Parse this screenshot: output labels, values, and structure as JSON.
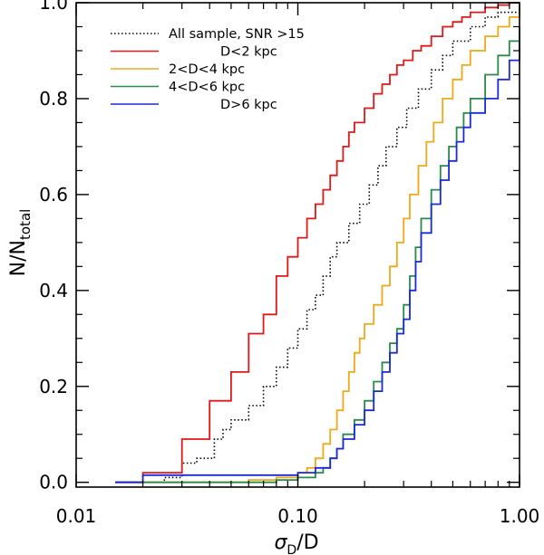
{
  "chart_data": {
    "type": "line",
    "step": true,
    "xlabel": "σD/D",
    "xlabel_main": "σ",
    "xlabel_sub": "D",
    "xlabel_tail": "/D",
    "ylabel": "N/Ntotal",
    "ylabel_main": "N/N",
    "ylabel_sub": "total",
    "xscale": "log",
    "xlim": [
      0.01,
      1.0
    ],
    "ylim": [
      -0.01,
      1.0
    ],
    "xticks": [
      {
        "value": 0.01,
        "label": "0.01"
      },
      {
        "value": 0.1,
        "label": "0.10"
      },
      {
        "value": 1.0,
        "label": "1.00"
      }
    ],
    "yticks": [
      {
        "value": 0.0,
        "label": "0.0"
      },
      {
        "value": 0.2,
        "label": "0.2"
      },
      {
        "value": 0.4,
        "label": "0.4"
      },
      {
        "value": 0.6,
        "label": "0.6"
      },
      {
        "value": 0.8,
        "label": "0.8"
      },
      {
        "value": 1.0,
        "label": "1.0"
      }
    ],
    "grid": false,
    "legend_position": "top-left",
    "series": [
      {
        "name": "All sample, SNR >15",
        "color": "#000000",
        "dash": "dotted",
        "x": [
          0.015,
          0.025,
          0.03,
          0.035,
          0.042,
          0.046,
          0.05,
          0.06,
          0.07,
          0.08,
          0.09,
          0.1,
          0.11,
          0.12,
          0.13,
          0.14,
          0.15,
          0.17,
          0.19,
          0.21,
          0.23,
          0.25,
          0.28,
          0.31,
          0.35,
          0.4,
          0.45,
          0.5,
          0.6,
          0.7,
          0.8,
          0.9,
          1.0
        ],
        "y": [
          0.0,
          0.01,
          0.04,
          0.05,
          0.09,
          0.11,
          0.13,
          0.16,
          0.2,
          0.24,
          0.28,
          0.32,
          0.36,
          0.39,
          0.43,
          0.47,
          0.5,
          0.54,
          0.58,
          0.62,
          0.66,
          0.7,
          0.74,
          0.78,
          0.82,
          0.86,
          0.89,
          0.92,
          0.95,
          0.97,
          0.98,
          0.98,
          0.99
        ]
      },
      {
        "name": "D<2 kpc",
        "color": "#e01818",
        "dash": "solid",
        "x": [
          0.015,
          0.02,
          0.03,
          0.04,
          0.05,
          0.06,
          0.07,
          0.08,
          0.09,
          0.1,
          0.11,
          0.12,
          0.13,
          0.14,
          0.15,
          0.16,
          0.17,
          0.18,
          0.2,
          0.22,
          0.24,
          0.26,
          0.28,
          0.3,
          0.33,
          0.36,
          0.4,
          0.45,
          0.5,
          0.55,
          0.6,
          0.7,
          0.8,
          0.9,
          1.0
        ],
        "y": [
          0.0,
          0.02,
          0.09,
          0.17,
          0.23,
          0.31,
          0.35,
          0.43,
          0.47,
          0.51,
          0.55,
          0.58,
          0.61,
          0.64,
          0.67,
          0.7,
          0.73,
          0.75,
          0.78,
          0.81,
          0.83,
          0.85,
          0.87,
          0.88,
          0.9,
          0.91,
          0.93,
          0.95,
          0.96,
          0.97,
          0.98,
          0.99,
          0.995,
          1.0,
          1.0
        ]
      },
      {
        "name": "2<D<4 kpc",
        "color": "#f0a818",
        "dash": "solid",
        "x": [
          0.015,
          0.05,
          0.06,
          0.08,
          0.1,
          0.11,
          0.12,
          0.13,
          0.14,
          0.15,
          0.16,
          0.17,
          0.18,
          0.19,
          0.2,
          0.22,
          0.24,
          0.26,
          0.28,
          0.3,
          0.32,
          0.35,
          0.38,
          0.41,
          0.45,
          0.5,
          0.55,
          0.6,
          0.7,
          0.8,
          0.9,
          1.0
        ],
        "y": [
          0.0,
          0.0,
          0.005,
          0.01,
          0.02,
          0.03,
          0.05,
          0.08,
          0.11,
          0.15,
          0.19,
          0.23,
          0.27,
          0.3,
          0.33,
          0.37,
          0.41,
          0.45,
          0.5,
          0.55,
          0.6,
          0.66,
          0.71,
          0.75,
          0.8,
          0.84,
          0.87,
          0.9,
          0.93,
          0.95,
          0.97,
          0.98
        ]
      },
      {
        "name": "4<D<6 kpc",
        "color": "#2a8a4a",
        "dash": "solid",
        "x": [
          0.015,
          0.06,
          0.08,
          0.1,
          0.12,
          0.13,
          0.14,
          0.15,
          0.16,
          0.18,
          0.2,
          0.22,
          0.24,
          0.26,
          0.28,
          0.3,
          0.32,
          0.34,
          0.36,
          0.4,
          0.44,
          0.48,
          0.52,
          0.56,
          0.6,
          0.7,
          0.8,
          0.9,
          1.0
        ],
        "y": [
          0.0,
          0.0,
          0.005,
          0.01,
          0.02,
          0.03,
          0.05,
          0.07,
          0.1,
          0.13,
          0.17,
          0.21,
          0.25,
          0.29,
          0.32,
          0.37,
          0.43,
          0.49,
          0.55,
          0.61,
          0.66,
          0.7,
          0.74,
          0.77,
          0.8,
          0.85,
          0.89,
          0.92,
          0.95
        ]
      },
      {
        "name": "D>6 kpc",
        "color": "#1a2ad8",
        "dash": "solid",
        "x": [
          0.015,
          0.02,
          0.09,
          0.1,
          0.12,
          0.14,
          0.15,
          0.16,
          0.18,
          0.2,
          0.22,
          0.24,
          0.26,
          0.28,
          0.3,
          0.32,
          0.34,
          0.36,
          0.4,
          0.44,
          0.48,
          0.52,
          0.56,
          0.6,
          0.7,
          0.8,
          0.9,
          1.0
        ],
        "y": [
          0.0,
          0.015,
          0.015,
          0.02,
          0.03,
          0.05,
          0.07,
          0.09,
          0.12,
          0.15,
          0.19,
          0.23,
          0.27,
          0.31,
          0.34,
          0.4,
          0.46,
          0.52,
          0.58,
          0.63,
          0.67,
          0.71,
          0.74,
          0.77,
          0.8,
          0.84,
          0.88,
          0.92
        ]
      }
    ]
  }
}
